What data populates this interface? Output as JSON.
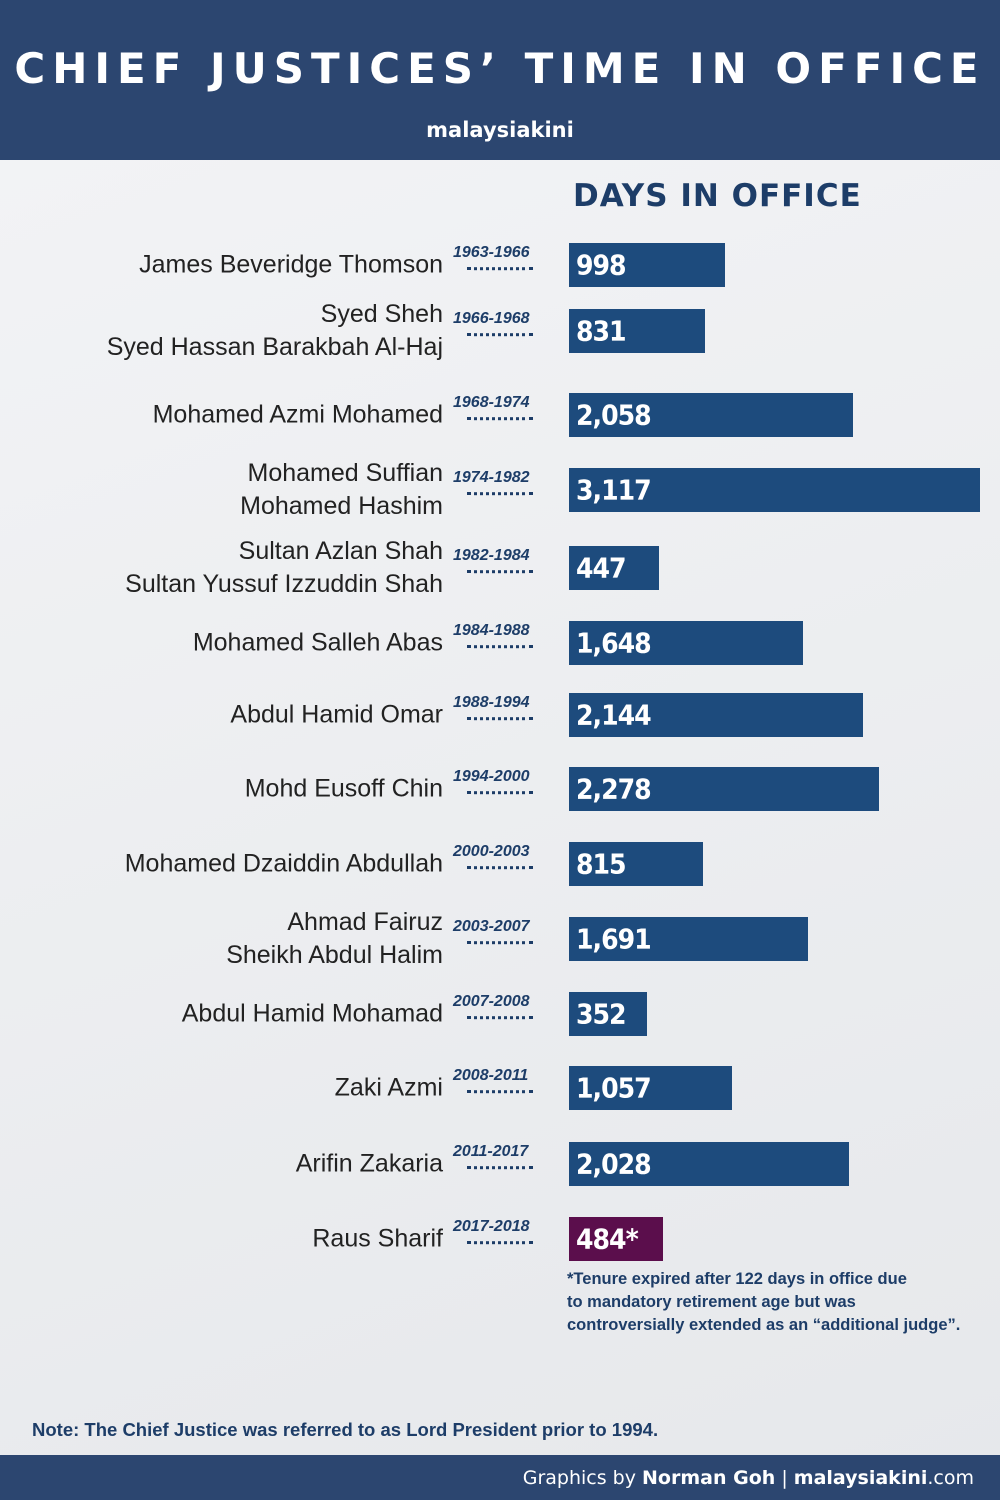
{
  "header": {
    "title": "CHIEF JUSTICES’ TIME IN OFFICE",
    "brand": "malaysiakini"
  },
  "chart_data": {
    "type": "bar",
    "orientation": "horizontal",
    "title": "DAYS IN OFFICE",
    "categories": [
      "James Beveridge Thomson",
      "Syed Sheh\nSyed Hassan Barakbah Al-Haj",
      "Mohamed Azmi Mohamed",
      "Mohamed Suffian\nMohamed Hashim",
      "Sultan Azlan Shah\nSultan Yussuf Izzuddin Shah",
      "Mohamed Salleh Abas",
      "Abdul Hamid Omar",
      "Mohd Eusoff Chin",
      "Mohamed Dzaiddin Abdullah",
      "Ahmad Fairuz\nSheikh Abdul Halim",
      "Abdul Hamid Mohamad",
      "Zaki Azmi",
      "Arifin Zakaria",
      "Raus Sharif"
    ],
    "periods": [
      "1963-1966",
      "1966-1968",
      "1968-1974",
      "1974-1982",
      "1982-1984",
      "1984-1988",
      "1988-1994",
      "1994-2000",
      "2000-2003",
      "2003-2007",
      "2007-2008",
      "2008-2011",
      "2011-2017",
      "2017-2018"
    ],
    "values": [
      998,
      831,
      2058,
      3117,
      447,
      1648,
      2144,
      2278,
      815,
      1691,
      352,
      1057,
      2028,
      484
    ],
    "value_labels": [
      "998",
      "831",
      "2,058",
      "3,117",
      "447",
      "1,648",
      "2,144",
      "2,278",
      "815",
      "1,691",
      "352",
      "1,057",
      "2,028",
      "484*"
    ],
    "colors": [
      "#1d4b7d",
      "#1d4b7d",
      "#1d4b7d",
      "#1d4b7d",
      "#1d4b7d",
      "#1d4b7d",
      "#1d4b7d",
      "#1d4b7d",
      "#1d4b7d",
      "#1d4b7d",
      "#1d4b7d",
      "#1d4b7d",
      "#1d4b7d",
      "#5b0e4c"
    ],
    "xlim": [
      -300,
      3117
    ],
    "footnote": "*Tenure expired after 122 days in office due\nto mandatory retirement age but was\ncontroversially extended as an “additional judge”."
  },
  "note": "Note: The Chief Justice was referred to as Lord President prior to 1994.",
  "footer": {
    "prefix": "Graphics by",
    "author": "Norman Goh",
    "separator": "|",
    "site": "malaysiakini",
    "domain": ".com"
  }
}
